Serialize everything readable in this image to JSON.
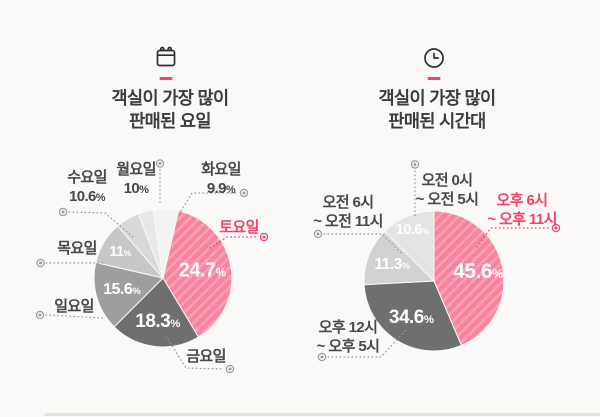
{
  "canvas": {
    "background": "#faf9f8"
  },
  "accent": {
    "pink_text": "#f43f68",
    "pink_slice_base": "#f8839d",
    "pink_slice_stripe": "#faa2b5",
    "leader_gray": "#9b9b9b",
    "title_color": "#3c3c3c"
  },
  "charts": [
    {
      "icon": "calendar",
      "title_line1": "객실이 가장 많이",
      "title_line2": "판매된 요일",
      "colors": [
        "hatch",
        "#6f6f6f",
        "#9e9e9e",
        "#c7c7c7",
        "#d8d8d8",
        "#e8e8e8",
        "#f3f3f3"
      ],
      "callouts": [
        {
          "key": "fri",
          "line1": "금요일"
        },
        {
          "key": "sat",
          "line1": "토요일",
          "highlight": true
        },
        {
          "key": "sun",
          "line1": "일요일"
        },
        {
          "key": "thu",
          "line1": "목요일"
        },
        {
          "key": "wed",
          "line1": "수요일",
          "line2": "10.6%"
        },
        {
          "key": "mon",
          "line1": "월요일",
          "line2": "10%"
        },
        {
          "key": "tue",
          "line1": "화요일",
          "line2": "9.9%"
        }
      ]
    },
    {
      "icon": "clock",
      "title_line1": "객실이 가장 많이",
      "title_line2": "판매된 시간대",
      "colors": [
        "hatch",
        "#6f6f6f",
        "#d2d2d2",
        "#e4e4e4"
      ],
      "callouts": [
        {
          "key": "pm6",
          "line1": "오후 6시",
          "line2": "~ 오후 11시",
          "highlight": true
        },
        {
          "key": "pm12",
          "line1": "오후 12시",
          "line2": "~ 오후 5시"
        },
        {
          "key": "am6",
          "line1": "오전 6시",
          "line2": "~ 오전 11시"
        },
        {
          "key": "am0",
          "line1": "오전 0시",
          "line2": "~ 오전 5시"
        }
      ]
    }
  ],
  "chart_data": [
    {
      "type": "pie",
      "title": "객실이 가장 많이 판매된 요일",
      "labels": [
        "토요일",
        "금요일",
        "일요일",
        "목요일",
        "수요일",
        "월요일",
        "화요일"
      ],
      "values": [
        24.7,
        18.3,
        15.6,
        11,
        10.6,
        10,
        9.9
      ],
      "unit": "%",
      "highlight": "토요일",
      "legend": "none",
      "value_labels_inside": [
        "토요일",
        "금요일",
        "일요일",
        "목요일"
      ],
      "value_labels_outside": [
        "수요일",
        "월요일",
        "화요일"
      ]
    },
    {
      "type": "pie",
      "title": "객실이 가장 많이 판매된 시간대",
      "labels": [
        "오후 6시 ~ 오후 11시",
        "오후 12시 ~ 오후 5시",
        "오전 6시 ~ 오전 11시",
        "오전 0시 ~ 오전 5시"
      ],
      "values": [
        45.6,
        34.6,
        11.3,
        10.6
      ],
      "unit": "%",
      "highlight": "오후 6시 ~ 오후 11시",
      "legend": "none",
      "value_labels_inside": [
        "오후 6시 ~ 오후 11시",
        "오후 12시 ~ 오후 5시",
        "오전 6시 ~ 오전 11시",
        "오전 0시 ~ 오전 5시"
      ]
    }
  ]
}
